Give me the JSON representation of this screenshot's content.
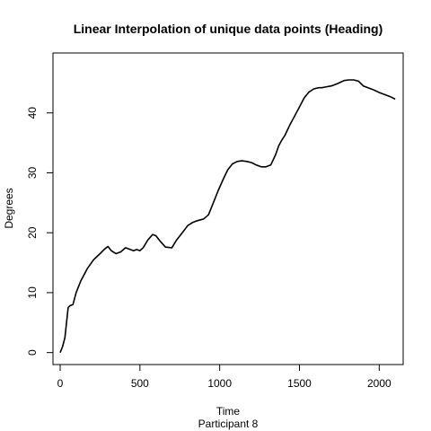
{
  "chart_data": {
    "type": "line",
    "title": "Linear Interpolation of unique data points (Heading)",
    "xlabel": "Time",
    "subtitle": "Participant  8",
    "ylabel": "Degrees",
    "xlim": [
      -45,
      2150
    ],
    "ylim": [
      -2,
      50
    ],
    "x_ticks": [
      0,
      500,
      1000,
      1500,
      2000
    ],
    "y_ticks": [
      0,
      10,
      20,
      30,
      40
    ],
    "grid": false,
    "legend": "none",
    "line_color": "#000000",
    "series": [
      {
        "x": [
          0,
          15,
          30,
          40,
          50,
          60,
          70,
          80,
          100,
          130,
          170,
          210,
          250,
          280,
          300,
          320,
          350,
          380,
          410,
          430,
          460,
          480,
          500,
          520,
          550,
          580,
          600,
          630,
          660,
          700,
          730,
          760,
          800,
          830,
          860,
          900,
          930,
          960,
          990,
          1020,
          1050,
          1080,
          1110,
          1140,
          1170,
          1200,
          1230,
          1260,
          1290,
          1320,
          1350,
          1370,
          1390,
          1410,
          1440,
          1470,
          1500,
          1530,
          1560,
          1590,
          1620,
          1640,
          1660,
          1700,
          1740,
          1780,
          1810,
          1840,
          1870,
          1900,
          1930,
          1960,
          2000,
          2040,
          2070,
          2100
        ],
        "y": [
          0,
          1,
          2.5,
          5,
          7.5,
          7.8,
          7.9,
          8,
          10,
          12,
          14,
          15.5,
          16.5,
          17.3,
          17.7,
          17,
          16.5,
          16.8,
          17.5,
          17.3,
          17,
          17.2,
          17,
          17.5,
          18.8,
          19.7,
          19.5,
          18.5,
          17.6,
          17.5,
          18.8,
          19.8,
          21.2,
          21.7,
          22,
          22.3,
          23,
          25,
          27,
          28.8,
          30.5,
          31.5,
          31.9,
          32,
          31.9,
          31.7,
          31.3,
          31,
          31,
          31.3,
          33,
          34.5,
          35.5,
          36.3,
          38,
          39.5,
          41,
          42.5,
          43.5,
          44,
          44.2,
          44.2,
          44.3,
          44.5,
          44.9,
          45.4,
          45.5,
          45.5,
          45.3,
          44.5,
          44.2,
          43.9,
          43.4,
          43,
          42.7,
          42.3
        ]
      }
    ]
  }
}
